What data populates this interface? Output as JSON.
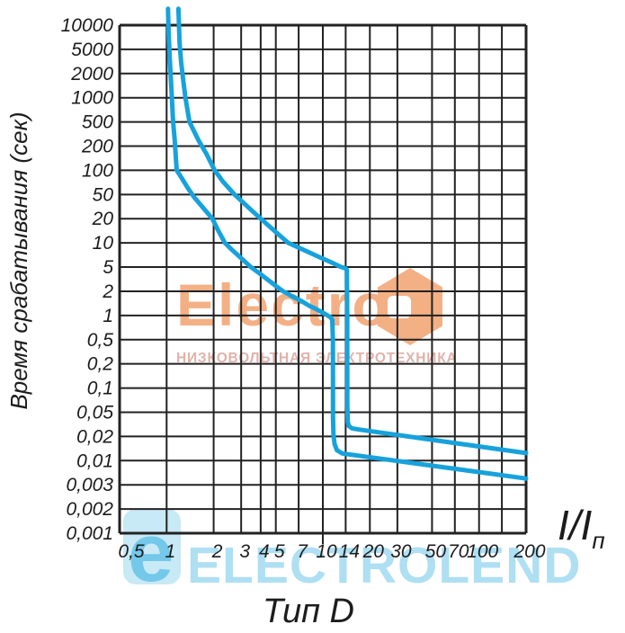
{
  "titles": {
    "bottom": "Тип D",
    "y_axis": "Время срабатывания (сек)"
  },
  "axis_unit": {
    "main": "I/I",
    "sub": "п"
  },
  "watermarks": {
    "brand": "Electro",
    "brand_subtitle": "НИЗКОВОЛЬТНАЯ ЭЛЕКТРОТЕХНИКА",
    "brand_color": "#f2a878",
    "subtitle_color": "#dcaaa2",
    "bottom_logo_letter": "e",
    "bottom_text": "ELECTROLEND",
    "bottom_text_color": "#aedff2",
    "bottom_tile_color": "#c8e9f6",
    "bottom_letter_color": "#74c8e9"
  },
  "chart_data": {
    "type": "line",
    "title": "Тип D",
    "ylabel": "Время срабатывания (сек)",
    "xlabel": "I/Iп",
    "x_scale": "log",
    "y_scale": "log-stylized-even-ticks",
    "grid": true,
    "curve_color": "#17a2dc",
    "grid_color": "#222222",
    "x_range": [
      0.5,
      200
    ],
    "x_ticks": [
      {
        "v": 0.5,
        "label": "0,5",
        "dx": 13
      },
      {
        "v": 1,
        "label": "1"
      },
      {
        "v": 2,
        "label": "2"
      },
      {
        "v": 3,
        "label": "3"
      },
      {
        "v": 4,
        "label": "4"
      },
      {
        "v": 5,
        "label": "5"
      },
      {
        "v": 7,
        "label": "7"
      },
      {
        "v": 10,
        "label": "10",
        "sub_tick": true
      },
      {
        "v": 14,
        "label": "14"
      },
      {
        "v": 20,
        "label": "20"
      },
      {
        "v": 30,
        "label": "30"
      },
      {
        "v": 50,
        "label": "50"
      },
      {
        "v": 70,
        "label": "70"
      },
      {
        "v": 100,
        "label": "100"
      },
      {
        "v": 140,
        "label": ""
      },
      {
        "v": 200,
        "label": "200"
      }
    ],
    "y_ticks": [
      {
        "v": 10000,
        "label": "10000"
      },
      {
        "v": 5000,
        "label": "5000"
      },
      {
        "v": 2000,
        "label": "2000"
      },
      {
        "v": 1000,
        "label": "1000"
      },
      {
        "v": 500,
        "label": "500"
      },
      {
        "v": 200,
        "label": "200"
      },
      {
        "v": 100,
        "label": "100"
      },
      {
        "v": 50,
        "label": "50"
      },
      {
        "v": 20,
        "label": "20"
      },
      {
        "v": 10,
        "label": "10"
      },
      {
        "v": 5,
        "label": "5"
      },
      {
        "v": 2,
        "label": "2"
      },
      {
        "v": 1,
        "label": "1"
      },
      {
        "v": 0.5,
        "label": "0,5"
      },
      {
        "v": 0.2,
        "label": "0,2"
      },
      {
        "v": 0.1,
        "label": "0,1"
      },
      {
        "v": 0.05,
        "label": "0,05"
      },
      {
        "v": 0.02,
        "label": "0,02"
      },
      {
        "v": 0.01,
        "label": "0,01"
      },
      {
        "v": 0.003,
        "label": "0,003"
      },
      {
        "v": 0.002,
        "label": "0,002"
      },
      {
        "v": 0.001,
        "label": "0,001"
      }
    ],
    "series": [
      {
        "name": "min-trip-time-curve",
        "points": [
          [
            1.02,
            16000
          ],
          [
            1.03,
            8000
          ],
          [
            1.045,
            4000
          ],
          [
            1.06,
            2000
          ],
          [
            1.08,
            1000
          ],
          [
            1.1,
            500
          ],
          [
            1.125,
            260
          ],
          [
            1.16,
            100
          ],
          [
            1.25,
            80
          ],
          [
            1.37,
            60
          ],
          [
            1.5,
            45
          ],
          [
            1.63,
            35
          ],
          [
            1.8,
            26
          ],
          [
            1.96,
            20
          ],
          [
            2.15,
            14
          ],
          [
            2.36,
            10
          ],
          [
            2.6,
            8.3
          ],
          [
            2.87,
            7
          ],
          [
            3.15,
            5.9
          ],
          [
            3.46,
            5
          ],
          [
            3.9,
            4
          ],
          [
            4.51,
            3
          ],
          [
            5.0,
            2.45
          ],
          [
            5.57,
            2
          ],
          [
            6.3,
            1.75
          ],
          [
            7.34,
            1.5
          ],
          [
            8.2,
            1.32
          ],
          [
            9.06,
            1.2
          ],
          [
            10.3,
            1.05
          ],
          [
            11.2,
            0.95
          ],
          [
            11.5,
            0.88
          ],
          [
            11.6,
            0.5
          ],
          [
            11.62,
            0.04
          ],
          [
            11.7,
            0.021
          ],
          [
            11.9,
            0.016
          ],
          [
            12.3,
            0.0135
          ],
          [
            13.3,
            0.0123
          ],
          [
            200,
            0.0041
          ]
        ]
      },
      {
        "name": "max-trip-time-curve",
        "points": [
          [
            1.19,
            16000
          ],
          [
            1.21,
            6000
          ],
          [
            1.24,
            3000
          ],
          [
            1.28,
            1600
          ],
          [
            1.32,
            1000
          ],
          [
            1.4,
            500
          ],
          [
            1.6,
            250
          ],
          [
            1.8,
            160
          ],
          [
            2.03,
            100
          ],
          [
            2.3,
            72
          ],
          [
            2.72,
            50
          ],
          [
            3.37,
            30
          ],
          [
            4.0,
            20
          ],
          [
            4.93,
            14
          ],
          [
            6.0,
            10
          ],
          [
            7.73,
            8
          ],
          [
            9.76,
            6.5
          ],
          [
            11.6,
            5.6
          ],
          [
            13.0,
            5.05
          ],
          [
            14.0,
            4.75
          ],
          [
            14.25,
            4.5
          ],
          [
            14.32,
            1.0
          ],
          [
            14.35,
            0.06
          ],
          [
            14.45,
            0.034
          ],
          [
            14.7,
            0.0295
          ],
          [
            15.4,
            0.0272
          ],
          [
            17,
            0.026
          ],
          [
            200,
            0.0124
          ]
        ]
      }
    ]
  }
}
